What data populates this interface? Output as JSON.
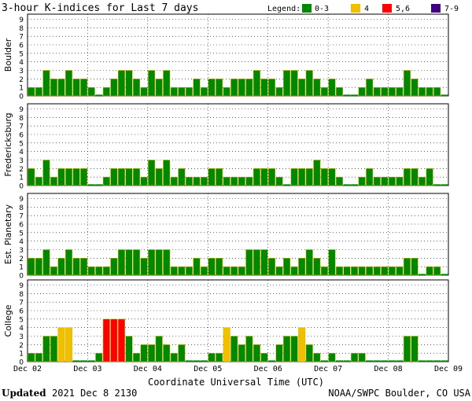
{
  "title": "3-hour K-indices for Last 7 days",
  "legend": {
    "label": "Legend:",
    "items": [
      {
        "label": "0-3",
        "color": "#008800"
      },
      {
        "label": "4",
        "color": "#f0c000"
      },
      {
        "label": "5,6",
        "color": "#ff0000"
      },
      {
        "label": "7-9",
        "color": "#40007f"
      }
    ]
  },
  "xlabel": "Coordinate Universal Time (UTC)",
  "updated_label": "Updated",
  "updated_value": "2021 Dec  8 2130",
  "credit": "NOAA/SWPC Boulder, CO USA",
  "chart_data": {
    "type": "bar",
    "x_ticks": [
      "Dec 02",
      "Dec 03",
      "Dec 04",
      "Dec 05",
      "Dec 06",
      "Dec 07",
      "Dec 08",
      "Dec 09"
    ],
    "ylim": [
      0,
      9
    ],
    "yticks": [
      0,
      1,
      2,
      3,
      4,
      5,
      6,
      7,
      8,
      9
    ],
    "bars_per_day": 8,
    "panels": [
      {
        "name": "Boulder",
        "values": [
          1,
          1,
          3,
          2,
          2,
          3,
          2,
          2,
          1,
          0,
          1,
          2,
          3,
          3,
          2,
          1,
          3,
          2,
          3,
          1,
          1,
          1,
          2,
          1,
          2,
          2,
          1,
          2,
          2,
          2,
          3,
          2,
          2,
          1,
          3,
          3,
          2,
          3,
          2,
          1,
          2,
          1,
          0,
          0,
          1,
          2,
          1,
          1,
          1,
          1,
          3,
          2,
          1,
          1,
          1,
          0
        ]
      },
      {
        "name": "Fredericksburg",
        "values": [
          2,
          1,
          3,
          1,
          2,
          2,
          2,
          2,
          0,
          0,
          1,
          2,
          2,
          2,
          2,
          1,
          3,
          2,
          3,
          1,
          2,
          1,
          1,
          1,
          2,
          2,
          1,
          1,
          1,
          1,
          2,
          2,
          2,
          1,
          0,
          2,
          2,
          2,
          3,
          2,
          2,
          1,
          0,
          0,
          1,
          2,
          1,
          1,
          1,
          1,
          2,
          2,
          1,
          2,
          0,
          0
        ]
      },
      {
        "name": "Est. Planetary",
        "values": [
          2,
          2,
          3,
          1,
          2,
          3,
          2,
          2,
          1,
          1,
          1,
          2,
          3,
          3,
          3,
          2,
          3,
          3,
          3,
          1,
          1,
          1,
          2,
          1,
          2,
          2,
          1,
          1,
          1,
          3,
          3,
          3,
          2,
          1,
          2,
          1,
          2,
          3,
          2,
          1,
          3,
          1,
          1,
          1,
          1,
          1,
          1,
          1,
          1,
          1,
          2,
          2,
          0,
          1,
          1,
          0
        ]
      },
      {
        "name": "College",
        "values": [
          1,
          1,
          3,
          3,
          4,
          4,
          0,
          0,
          0,
          1,
          5,
          5,
          5,
          3,
          1,
          2,
          2,
          3,
          2,
          1,
          2,
          0,
          0,
          0,
          1,
          1,
          4,
          3,
          2,
          3,
          2,
          1,
          0,
          2,
          3,
          3,
          4,
          2,
          1,
          0,
          1,
          0,
          0,
          1,
          1,
          0,
          0,
          0,
          0,
          0,
          3,
          3,
          0,
          0,
          0,
          0
        ]
      }
    ]
  }
}
